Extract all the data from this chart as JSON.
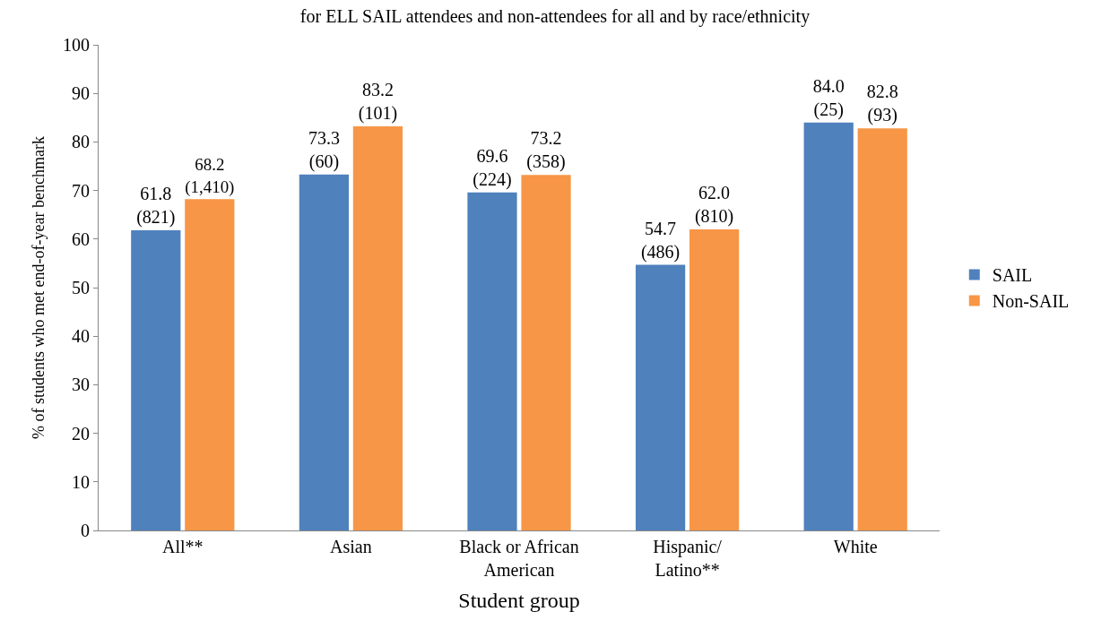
{
  "chart_data": {
    "type": "bar",
    "title": "for ELL SAIL attendees and non-attendees for all and by race/ethnicity",
    "xlabel": "Student group",
    "ylabel": "% of students who met end-of-year benchmark",
    "categories": [
      "All**",
      "Asian",
      "Black or African\nAmerican",
      "Hispanic/\nLatino**",
      "White"
    ],
    "series": [
      {
        "name": "SAIL",
        "color": "#4f81bd",
        "values": [
          61.8,
          73.3,
          69.6,
          54.7,
          84.0
        ],
        "value_labels": [
          "61.8\n(821)",
          "73.3\n(60)",
          "69.6\n(224)",
          "54.7\n(486)",
          "84.0\n(25)"
        ]
      },
      {
        "name": "Non-SAIL",
        "color": "#f79646",
        "values": [
          68.2,
          83.2,
          73.2,
          62.0,
          82.8
        ],
        "value_labels": [
          "68.2\n(1,410)",
          "83.2\n(101)",
          "73.2\n(358)",
          "62.0\n(810)",
          "82.8\n(93)"
        ]
      }
    ],
    "ylim": [
      0,
      100
    ],
    "yticks": [
      0,
      10,
      20,
      30,
      40,
      50,
      60,
      70,
      80,
      90,
      100
    ],
    "legend": "right"
  }
}
